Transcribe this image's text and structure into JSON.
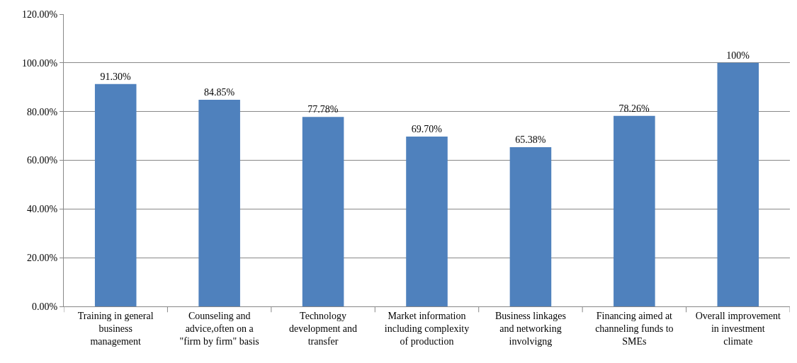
{
  "chart_data": {
    "type": "bar",
    "categories": [
      "Training in general\nbusiness\nmanagement",
      "Counseling and\nadvice,often on a\n\"firm by firm\" basis",
      "Technology\ndevelopment and\ntransfer",
      "Market information\nincluding complexity\nof production",
      "Business linkages\nand networking\ninvolvigng",
      "Financing aimed at\nchanneling funds to\nSMEs",
      "Overall improvement\nin investment\nclimate"
    ],
    "values": [
      91.3,
      84.85,
      77.78,
      69.7,
      65.38,
      78.26,
      100
    ],
    "value_labels": [
      "91.30%",
      "84.85%",
      "77.78%",
      "69.70%",
      "65.38%",
      "78.26%",
      "100%"
    ],
    "color": "#4f81bd",
    "ylim": [
      0,
      120
    ],
    "yticks": [
      {
        "value": 0,
        "label": "0.00%"
      },
      {
        "value": 20,
        "label": "20.00%"
      },
      {
        "value": 40,
        "label": "40.00%"
      },
      {
        "value": 60,
        "label": "60.00%"
      },
      {
        "value": 80,
        "label": "80.00%"
      },
      {
        "value": 100,
        "label": "100.00%"
      },
      {
        "value": 120,
        "label": "120.00%"
      }
    ],
    "grid": "y"
  }
}
